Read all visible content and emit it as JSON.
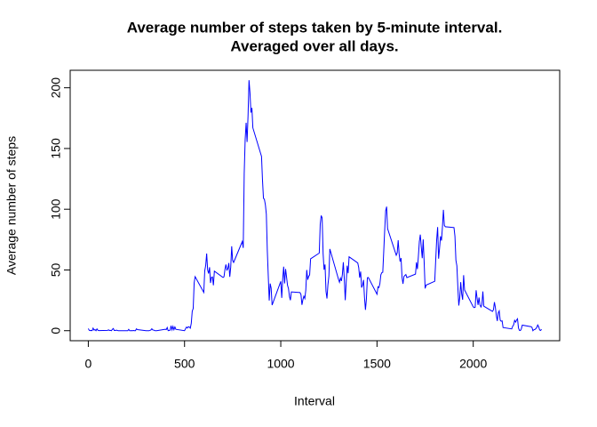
{
  "chart_data": {
    "type": "line",
    "title": [
      "Average number of steps taken by 5-minute interval.",
      "Averaged over all days."
    ],
    "x_label": "Interval",
    "y_label": "Average number of steps",
    "color": "blue",
    "xlim": [
      -94.2,
      2449.2
    ],
    "ylim": [
      -8.25,
      214.4
    ],
    "xticks": [
      0,
      500,
      1000,
      1500,
      2000
    ],
    "yticks": [
      0,
      50,
      100,
      150,
      200
    ],
    "x": [
      0,
      5,
      10,
      15,
      20,
      25,
      30,
      35,
      40,
      45,
      50,
      55,
      100,
      105,
      110,
      115,
      120,
      125,
      130,
      135,
      140,
      145,
      150,
      155,
      200,
      205,
      210,
      215,
      220,
      225,
      230,
      235,
      240,
      245,
      250,
      255,
      300,
      305,
      310,
      315,
      320,
      325,
      330,
      335,
      340,
      345,
      350,
      355,
      400,
      405,
      410,
      415,
      420,
      425,
      430,
      435,
      440,
      445,
      450,
      455,
      500,
      505,
      510,
      515,
      520,
      525,
      530,
      535,
      540,
      545,
      550,
      555,
      600,
      605,
      610,
      615,
      620,
      625,
      630,
      635,
      640,
      645,
      650,
      655,
      700,
      705,
      710,
      715,
      720,
      725,
      730,
      735,
      740,
      745,
      750,
      755,
      800,
      805,
      810,
      815,
      820,
      825,
      830,
      835,
      840,
      845,
      850,
      855,
      900,
      905,
      910,
      915,
      920,
      925,
      930,
      935,
      940,
      945,
      950,
      955,
      1000,
      1005,
      1010,
      1015,
      1020,
      1025,
      1030,
      1035,
      1040,
      1045,
      1050,
      1055,
      1100,
      1105,
      1110,
      1115,
      1120,
      1125,
      1130,
      1135,
      1140,
      1145,
      1150,
      1155,
      1200,
      1205,
      1210,
      1215,
      1220,
      1225,
      1230,
      1235,
      1240,
      1245,
      1250,
      1255,
      1300,
      1305,
      1310,
      1315,
      1320,
      1325,
      1330,
      1335,
      1340,
      1345,
      1350,
      1355,
      1400,
      1405,
      1410,
      1415,
      1420,
      1425,
      1430,
      1435,
      1440,
      1445,
      1450,
      1455,
      1500,
      1505,
      1510,
      1515,
      1520,
      1525,
      1530,
      1535,
      1540,
      1545,
      1550,
      1555,
      1600,
      1605,
      1610,
      1615,
      1620,
      1625,
      1630,
      1635,
      1640,
      1645,
      1650,
      1655,
      1700,
      1705,
      1710,
      1715,
      1720,
      1725,
      1730,
      1735,
      1740,
      1745,
      1750,
      1755,
      1800,
      1805,
      1810,
      1815,
      1820,
      1825,
      1830,
      1835,
      1840,
      1845,
      1850,
      1855,
      1900,
      1905,
      1910,
      1915,
      1920,
      1925,
      1930,
      1935,
      1940,
      1945,
      1950,
      1955,
      2000,
      2005,
      2010,
      2015,
      2020,
      2025,
      2030,
      2035,
      2040,
      2045,
      2050,
      2055,
      2100,
      2105,
      2110,
      2115,
      2120,
      2125,
      2130,
      2135,
      2140,
      2145,
      2150,
      2155,
      2200,
      2205,
      2210,
      2215,
      2220,
      2225,
      2230,
      2235,
      2240,
      2245,
      2250,
      2255,
      2300,
      2305,
      2310,
      2315,
      2320,
      2325,
      2330,
      2335,
      2340,
      2345,
      2350,
      2355
    ],
    "values": [
      1.7,
      0.3,
      0.1,
      0.2,
      0.1,
      2.1,
      0.5,
      0.9,
      0,
      1.5,
      0.3,
      0.1,
      0.3,
      0.7,
      0.2,
      0.3,
      0,
      1.1,
      1.8,
      0.2,
      0.2,
      0.4,
      0.3,
      0,
      0,
      0,
      1.1,
      0,
      0,
      0.1,
      0,
      0.2,
      0,
      0,
      1.5,
      0.9,
      0,
      0,
      0,
      0,
      0.2,
      0.6,
      1.6,
      0.6,
      0.5,
      0.1,
      0,
      0,
      1.2,
      0.9,
      2.6,
      0,
      0.3,
      0.4,
      4.1,
      0.7,
      3.5,
      0.8,
      3.1,
      1.1,
      0,
      1.6,
      3,
      2.2,
      3.3,
      3,
      2.1,
      6.1,
      16,
      18.3,
      39.5,
      44.5,
      31.5,
      49.3,
      53.8,
      63.5,
      50,
      47.1,
      52.2,
      39.3,
      44,
      44.2,
      37.4,
      49,
      43.8,
      44.4,
      50.5,
      54.5,
      49.9,
      51,
      55.7,
      44.3,
      52.3,
      69.5,
      57.8,
      56.2,
      73.4,
      68.2,
      129.4,
      157.5,
      171.2,
      155.4,
      177.3,
      206.2,
      195.9,
      179.6,
      183.4,
      167,
      143.5,
      124,
      109.1,
      108.1,
      103.7,
      95.9,
      66.2,
      45.2,
      24.8,
      38.8,
      35,
      21.1,
      40.6,
      27,
      42.4,
      52.7,
      38.9,
      50.8,
      44.3,
      37.4,
      34.7,
      28.3,
      25.1,
      31.9,
      31.4,
      29.7,
      21.3,
      25.5,
      28.4,
      26.5,
      33.4,
      50,
      42,
      44.6,
      46,
      59.2,
      63.9,
      87.7,
      94.8,
      92.8,
      63.4,
      50.2,
      54.5,
      32.4,
      26.5,
      37.7,
      45.1,
      67.3,
      42.3,
      39.9,
      43.3,
      40.9,
      46.2,
      56.4,
      42.8,
      25.1,
      40,
      53.5,
      47.3,
      60.8,
      55.8,
      51.9,
      43.6,
      48.7,
      35.5,
      37.5,
      41.8,
      27.5,
      17.1,
      26.1,
      43.6,
      43.8,
      30,
      36.1,
      35.5,
      38.8,
      46,
      47.8,
      48.1,
      65.3,
      82.9,
      98.7,
      102.1,
      84,
      62.1,
      64.1,
      74.5,
      63.2,
      56.9,
      59.8,
      43.9,
      38.6,
      44.7,
      45.5,
      46.2,
      43.7,
      46.6,
      56.3,
      50.7,
      61.2,
      73.4,
      79.1,
      68.9,
      59.7,
      75.1,
      56.5,
      34.8,
      37.5,
      40.7,
      58,
      74.7,
      85.3,
      59.3,
      67.8,
      77.7,
      74.2,
      85.3,
      99.5,
      86.6,
      85.6,
      84.9,
      77.8,
      58,
      53.4,
      36.3,
      20.7,
      27.4,
      40,
      30.2,
      25.5,
      45.7,
      33.5,
      19.6,
      19,
      19.3,
      33.3,
      26.8,
      21.2,
      27.3,
      21.3,
      19.5,
      21.3,
      32.3,
      20.2,
      15.9,
      17.2,
      23.5,
      19.2,
      12.5,
      8,
      14.7,
      16.3,
      8.7,
      7.8,
      8.1,
      2.6,
      1.5,
      3.7,
      4.8,
      8.5,
      7.1,
      8.7,
      9.8,
      2.2,
      0.3,
      0.1,
      1.6,
      4.6,
      3.3,
      2.8,
      0,
      0.8,
      1,
      1.6,
      2.6,
      4.7,
      3.3,
      0.6,
      0.2,
      1.1
    ]
  }
}
